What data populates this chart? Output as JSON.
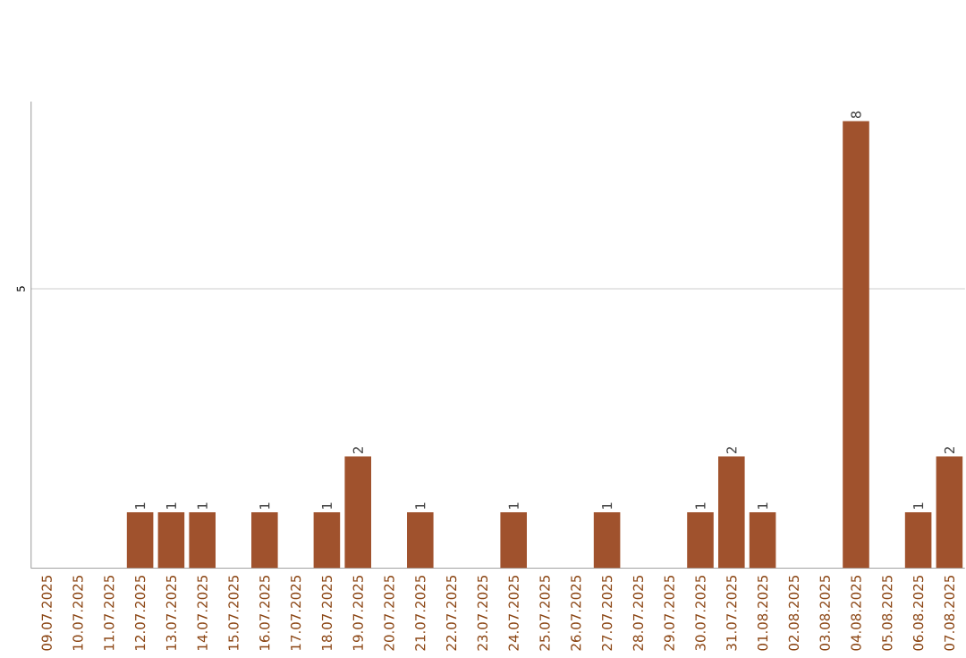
{
  "chart_data": {
    "type": "bar",
    "categories": [
      "09.07.2025",
      "10.07.2025",
      "11.07.2025",
      "12.07.2025",
      "13.07.2025",
      "14.07.2025",
      "15.07.2025",
      "16.07.2025",
      "17.07.2025",
      "18.07.2025",
      "19.07.2025",
      "20.07.2025",
      "21.07.2025",
      "22.07.2025",
      "23.07.2025",
      "24.07.2025",
      "25.07.2025",
      "26.07.2025",
      "27.07.2025",
      "28.07.2025",
      "29.07.2025",
      "30.07.2025",
      "31.07.2025",
      "01.08.2025",
      "02.08.2025",
      "03.08.2025",
      "04.08.2025",
      "05.08.2025",
      "06.08.2025",
      "07.08.2025"
    ],
    "values": [
      0,
      0,
      0,
      1,
      1,
      1,
      0,
      1,
      0,
      1,
      2,
      0,
      1,
      0,
      0,
      1,
      0,
      0,
      1,
      0,
      0,
      1,
      2,
      1,
      0,
      0,
      8,
      0,
      1,
      2
    ],
    "value_labels": [
      null,
      null,
      null,
      "1",
      "1",
      "1",
      null,
      "1",
      null,
      "1",
      "2",
      null,
      "1",
      null,
      null,
      "1",
      null,
      null,
      "1",
      null,
      null,
      "1",
      "2",
      "1",
      null,
      null,
      "8",
      null,
      "1",
      "2"
    ],
    "color": "#a0522d",
    "ylim": [
      0,
      8.35
    ],
    "yticks": [
      5
    ],
    "grid": "y"
  }
}
